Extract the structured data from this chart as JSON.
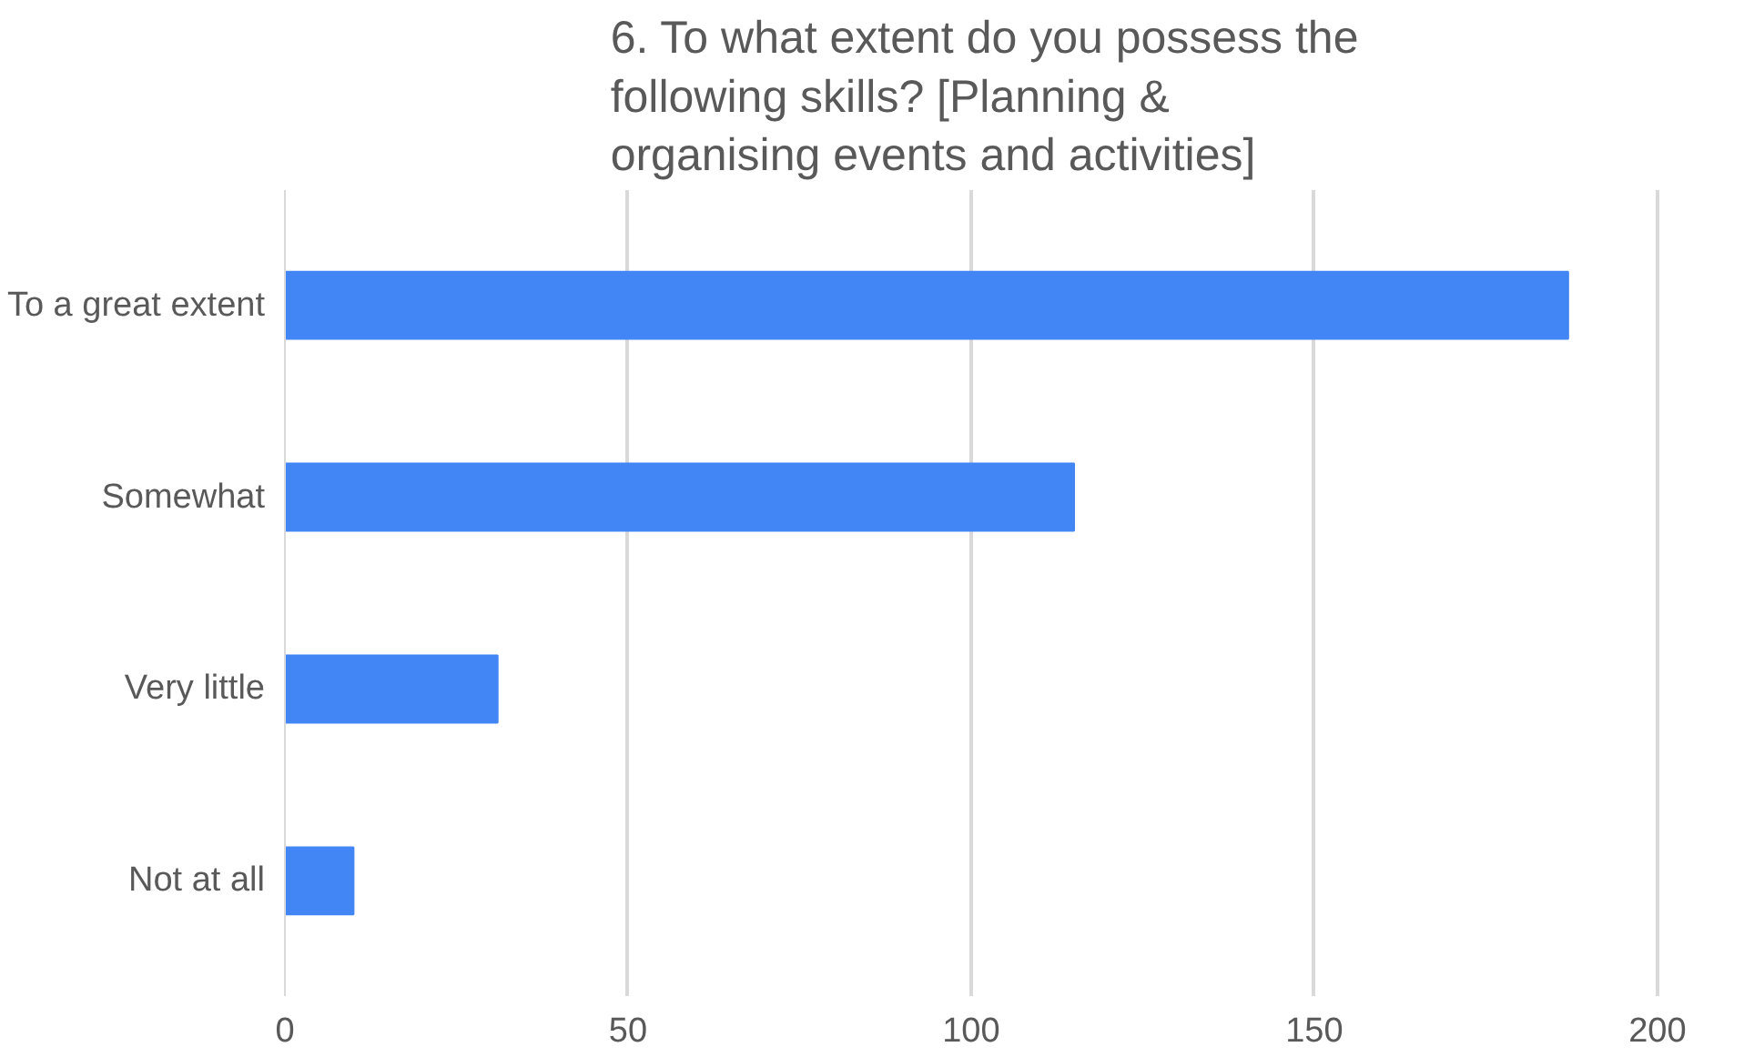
{
  "chart_data": {
    "type": "bar",
    "orientation": "horizontal",
    "title": "6. To what extent do you possess the following skills?  [Planning & organising events and activities]",
    "categories": [
      "To a great extent",
      "Somewhat",
      "Very little",
      "Not at all"
    ],
    "values": [
      187,
      115,
      31,
      10
    ],
    "color": "#4285f4",
    "xlim": [
      0,
      200
    ],
    "xticks": [
      0,
      50,
      100,
      150,
      200
    ],
    "grid": "x"
  }
}
